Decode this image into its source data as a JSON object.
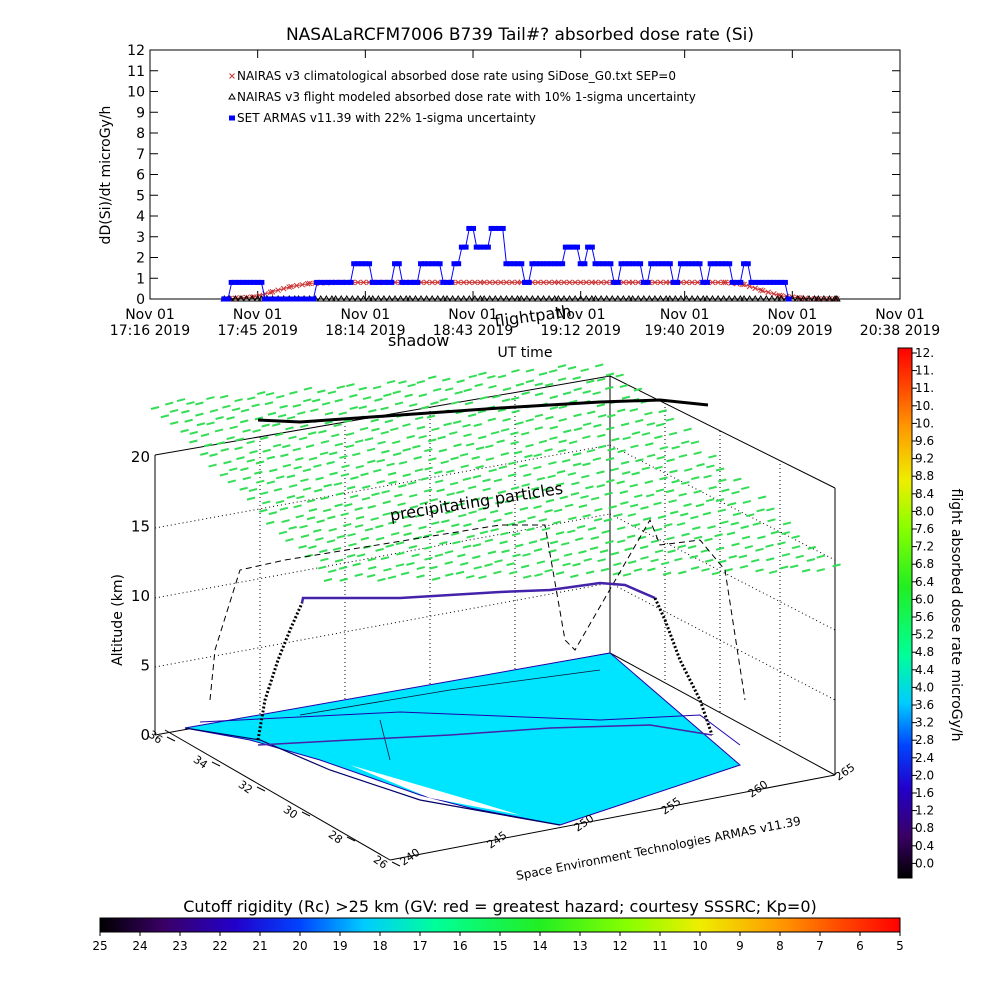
{
  "chart_data": [
    {
      "type": "line",
      "title": "NASALaRCFM7006  B739 Tail#? absorbed dose rate (Si)",
      "xlabel": "UT time",
      "ylabel": "dD(Si)/dt microGy/h",
      "ylim": [
        0,
        12
      ],
      "yticks": [
        "0",
        "1",
        "2",
        "3",
        "4",
        "5",
        "6",
        "7",
        "8",
        "9",
        "10",
        "11",
        "12"
      ],
      "xlim_minutes": [
        0,
        202
      ],
      "xticks": [
        {
          "m": 0,
          "line1": "Nov 01",
          "line2": "17:16 2019"
        },
        {
          "m": 29,
          "line1": "Nov 01",
          "line2": "17:45 2019"
        },
        {
          "m": 58,
          "line1": "Nov 01",
          "line2": "18:14 2019"
        },
        {
          "m": 87,
          "line1": "Nov 01",
          "line2": "18:43 2019"
        },
        {
          "m": 116,
          "line1": "Nov 01",
          "line2": "19:12 2019"
        },
        {
          "m": 144,
          "line1": "Nov 01",
          "line2": "19:40 2019"
        },
        {
          "m": 173,
          "line1": "Nov 01",
          "line2": "20:09 2019"
        },
        {
          "m": 202,
          "line1": "Nov 01",
          "line2": "20:38 2019"
        }
      ],
      "grid": false,
      "legend_position": "top-left",
      "series": [
        {
          "name": "NAIRAS v3 climatological absorbed dose rate using SiDose_G0.txt SEP=0",
          "color": "#cc3333",
          "marker": "x",
          "points": [
            [
              20,
              0
            ],
            [
              28,
              0.1
            ],
            [
              33,
              0.35
            ],
            [
              38,
              0.6
            ],
            [
              43,
              0.75
            ],
            [
              50,
              0.8
            ],
            [
              60,
              0.8
            ],
            [
              70,
              0.8
            ],
            [
              80,
              0.8
            ],
            [
              90,
              0.8
            ],
            [
              100,
              0.8
            ],
            [
              110,
              0.8
            ],
            [
              120,
              0.8
            ],
            [
              130,
              0.8
            ],
            [
              140,
              0.8
            ],
            [
              150,
              0.8
            ],
            [
              155,
              0.8
            ],
            [
              160,
              0.7
            ],
            [
              165,
              0.4
            ],
            [
              170,
              0.15
            ],
            [
              175,
              0.05
            ],
            [
              180,
              0
            ],
            [
              185,
              0
            ]
          ]
        },
        {
          "name": "NAIRAS v3 flight modeled absorbed dose rate with 10% 1-sigma uncertainty",
          "color": "#000000",
          "marker": "triangle",
          "points": [
            [
              20,
              0
            ],
            [
              30,
              0
            ],
            [
              40,
              0
            ],
            [
              50,
              0
            ],
            [
              60,
              0
            ],
            [
              70,
              0
            ],
            [
              80,
              0
            ],
            [
              90,
              0
            ],
            [
              100,
              0
            ],
            [
              110,
              0
            ],
            [
              120,
              0
            ],
            [
              130,
              0
            ],
            [
              140,
              0
            ],
            [
              150,
              0
            ],
            [
              160,
              0
            ],
            [
              170,
              0
            ],
            [
              180,
              0
            ],
            [
              185,
              0
            ]
          ]
        },
        {
          "name": "SET ARMAS v11.39 with 22% 1-sigma uncertainty",
          "color": "#0000ff",
          "marker": "square",
          "points": [
            [
              20,
              0
            ],
            [
              22,
              0.8
            ],
            [
              25,
              0.8
            ],
            [
              28,
              0.8
            ],
            [
              31,
              0
            ],
            [
              35,
              0
            ],
            [
              40,
              0
            ],
            [
              43,
              0
            ],
            [
              45,
              0.8
            ],
            [
              50,
              0.8
            ],
            [
              53,
              0.8
            ],
            [
              55,
              1.7
            ],
            [
              58,
              1.7
            ],
            [
              60,
              0.8
            ],
            [
              64,
              0.8
            ],
            [
              66,
              1.7
            ],
            [
              68,
              0.8
            ],
            [
              71,
              0.8
            ],
            [
              73,
              1.7
            ],
            [
              77,
              1.7
            ],
            [
              79,
              0.8
            ],
            [
              82,
              1.7
            ],
            [
              84,
              2.5
            ],
            [
              86,
              3.4
            ],
            [
              88,
              2.5
            ],
            [
              90,
              2.5
            ],
            [
              92,
              3.4
            ],
            [
              94,
              3.4
            ],
            [
              96,
              1.7
            ],
            [
              99,
              1.7
            ],
            [
              101,
              0.8
            ],
            [
              103,
              1.7
            ],
            [
              107,
              1.7
            ],
            [
              110,
              1.7
            ],
            [
              112,
              2.5
            ],
            [
              114,
              2.5
            ],
            [
              116,
              1.7
            ],
            [
              118,
              2.5
            ],
            [
              120,
              1.7
            ],
            [
              123,
              1.7
            ],
            [
              125,
              0.8
            ],
            [
              127,
              1.7
            ],
            [
              131,
              1.7
            ],
            [
              133,
              0.8
            ],
            [
              135,
              1.7
            ],
            [
              139,
              1.7
            ],
            [
              141,
              0.8
            ],
            [
              143,
              1.7
            ],
            [
              147,
              1.7
            ],
            [
              149,
              0.8
            ],
            [
              151,
              1.7
            ],
            [
              155,
              1.7
            ],
            [
              157,
              0.8
            ],
            [
              160,
              1.7
            ],
            [
              162,
              0.8
            ],
            [
              167,
              0.8
            ],
            [
              170,
              0.8
            ],
            [
              172,
              0
            ]
          ]
        }
      ]
    },
    {
      "type": "scatter",
      "subtype": "3d-flight-track",
      "zlabel": "Altitude (km)",
      "zticks": [
        "0",
        "5",
        "10",
        "15",
        "20"
      ],
      "lat_ticks": [
        "36",
        "34",
        "32",
        "30",
        "28",
        "26"
      ],
      "lon_ticks": [
        "240",
        "245",
        "250",
        "255",
        "260",
        "265"
      ],
      "annotations": {
        "shadow": "shadow",
        "flightpath": "flightpath",
        "precipitating": "precipitating particles",
        "credit": "Space Environment Technologies ARMAS v11.39"
      },
      "colors": {
        "map_fill": "#00e5ff",
        "precip_markers": "#33dd55",
        "track": "#4422aa"
      }
    },
    {
      "type": "heatmap",
      "subtype": "colorbar-vertical",
      "label": "flight absorbed dose rate microGy/h",
      "ticks": [
        "12.",
        "11.",
        "11.",
        "10.",
        "10.",
        "9.6",
        "9.2",
        "8.8",
        "8.4",
        "8.0",
        "7.6",
        "7.2",
        "6.8",
        "6.4",
        "6.0",
        "5.6",
        "5.2",
        "4.8",
        "4.4",
        "4.0",
        "3.6",
        "3.2",
        "2.8",
        "2.4",
        "2.0",
        "1.6",
        "1.2",
        "0.8",
        "0.4",
        "0.0"
      ]
    },
    {
      "type": "heatmap",
      "subtype": "colorbar-horizontal",
      "label": "Cutoff rigidity (Rc) >25 km (GV: red = greatest hazard; courtesy SSSRC; Kp=0)",
      "ticks": [
        "25",
        "24",
        "23",
        "22",
        "21",
        "20",
        "19",
        "18",
        "17",
        "16",
        "15",
        "14",
        "13",
        "12",
        "11",
        "10",
        "9",
        "8",
        "7",
        "6",
        "5"
      ]
    }
  ]
}
